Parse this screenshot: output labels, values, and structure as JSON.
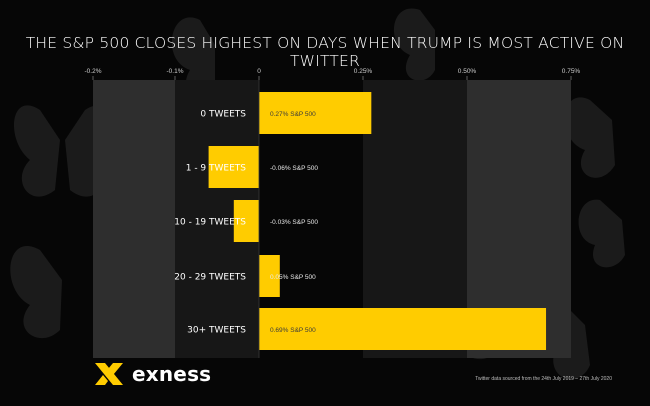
{
  "title": "THE S&P 500 CLOSES HIGHEST ON DAYS WHEN TRUMP IS MOST ACTIVE ON TWITTER",
  "chart_data": {
    "type": "bar",
    "orientation": "horizontal",
    "title": "THE S&P 500 CLOSES HIGHEST ON DAYS WHEN TRUMP IS MOST ACTIVE ON TWITTER",
    "categories": [
      "0 TWEETS",
      "1 - 9 TWEETS",
      "10 - 19 TWEETS",
      "20 - 29 TWEETS",
      "30+ TWEETS"
    ],
    "values": [
      0.27,
      -0.06,
      -0.03,
      0.05,
      0.69
    ],
    "data_labels": [
      "0.27% S&P 500",
      "-0.06% S&P 500",
      "-0.03% S&P 500",
      "0.05% S&P 500",
      "0.69% S&P 500"
    ],
    "ticks": [
      -0.2,
      -0.1,
      0,
      0.25,
      0.5,
      0.75
    ],
    "tick_labels": [
      "-0.2%",
      "-0.1%",
      "0",
      "0.25%",
      "0.50%",
      "0.75%"
    ],
    "xlim": [
      -0.2,
      0.75
    ],
    "xlabel": "",
    "ylabel": "",
    "colors": {
      "bar": "#FFCC00",
      "band_light": "#2e2e2e",
      "band_dark": "#171717",
      "text": "#ffffff"
    }
  },
  "brand": {
    "name": "exness",
    "mark_color": "#FFCC00"
  },
  "footnote": "Twitter data sourced from the 24th July 2019 – 27th July 2020"
}
